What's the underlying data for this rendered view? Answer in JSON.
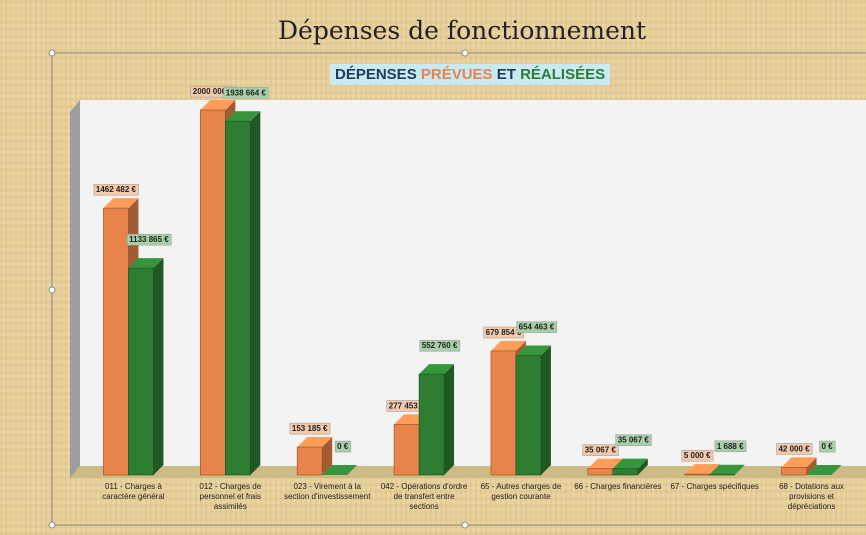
{
  "chart_data": {
    "type": "bar3d",
    "title": "Dépenses de fonctionnement",
    "subtitle_prefix": "DÉPENSES",
    "subtitle_joiner": "ET",
    "categories": [
      "011 - Charges à caractère général",
      "012 - Charges de personnel et frais assimilés",
      "023 - Virement à la section d'investissement",
      "042 - Opérations d'ordre de transfert entre sections",
      "65 - Autres charges de gestion courante",
      "66 - Charges financières",
      "67 - Charges spécifiques",
      "68 - Dotations aux provisions et dépréciations"
    ],
    "series": [
      {
        "name": "PRÉVUES",
        "color": "#e8834a",
        "values": [
          1462482,
          2000000,
          153185,
          277453,
          679854,
          35067,
          5000,
          42000
        ],
        "value_labels": [
          "1462 482 €",
          "2000 000 €",
          "153 185 €",
          "277 453 €",
          "679 854 €",
          "35 067 €",
          "5 000 €",
          "42 000 €"
        ]
      },
      {
        "name": "RÉALISÉES",
        "color": "#2e7d32",
        "values": [
          1133865,
          1938664,
          0,
          552760,
          654463,
          35067,
          1688,
          0
        ],
        "value_labels": [
          "1133 865 €",
          "1938 664 €",
          "0 €",
          "552 760 €",
          "654 463 €",
          "35 067 €",
          "1 688 €",
          "0 €"
        ]
      }
    ],
    "ylim": [
      0,
      2000000
    ]
  }
}
